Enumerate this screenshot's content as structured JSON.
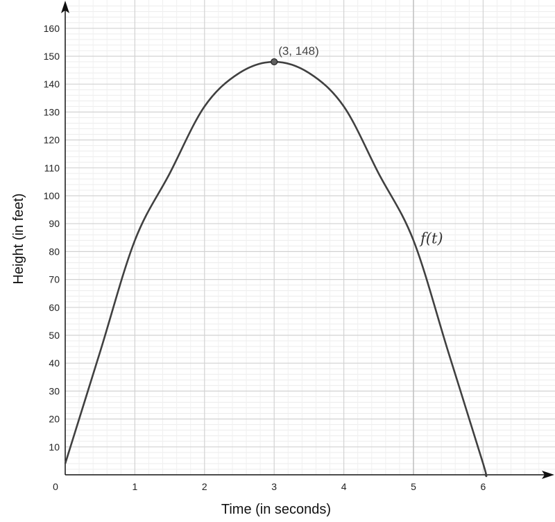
{
  "chart_data": {
    "type": "line",
    "xlabel": "Time (in seconds)",
    "ylabel": "Height  (in feet)",
    "xlim": [
      0,
      7
    ],
    "ylim": [
      0,
      168
    ],
    "x_ticks": [
      0,
      1,
      2,
      3,
      4,
      5,
      6
    ],
    "y_ticks": [
      10,
      20,
      30,
      40,
      50,
      60,
      70,
      80,
      90,
      100,
      110,
      120,
      130,
      140,
      150,
      160
    ],
    "grid": true,
    "series": [
      {
        "name": "f(t)",
        "color": "#404040",
        "x": [
          0,
          0.5,
          1,
          1.5,
          2,
          2.5,
          3,
          3.5,
          4,
          4.5,
          5,
          5.5,
          6,
          6.03
        ],
        "y": [
          4,
          44,
          84,
          108,
          132,
          144,
          148,
          144,
          132,
          108,
          84,
          44,
          4,
          0
        ]
      }
    ],
    "highlight_point": {
      "x": 3,
      "y": 148,
      "label": "(3, 148)"
    },
    "reference_line": {
      "x": 5
    },
    "curve_label": {
      "text": "f(t)",
      "x": 5.1,
      "y": 83
    }
  }
}
